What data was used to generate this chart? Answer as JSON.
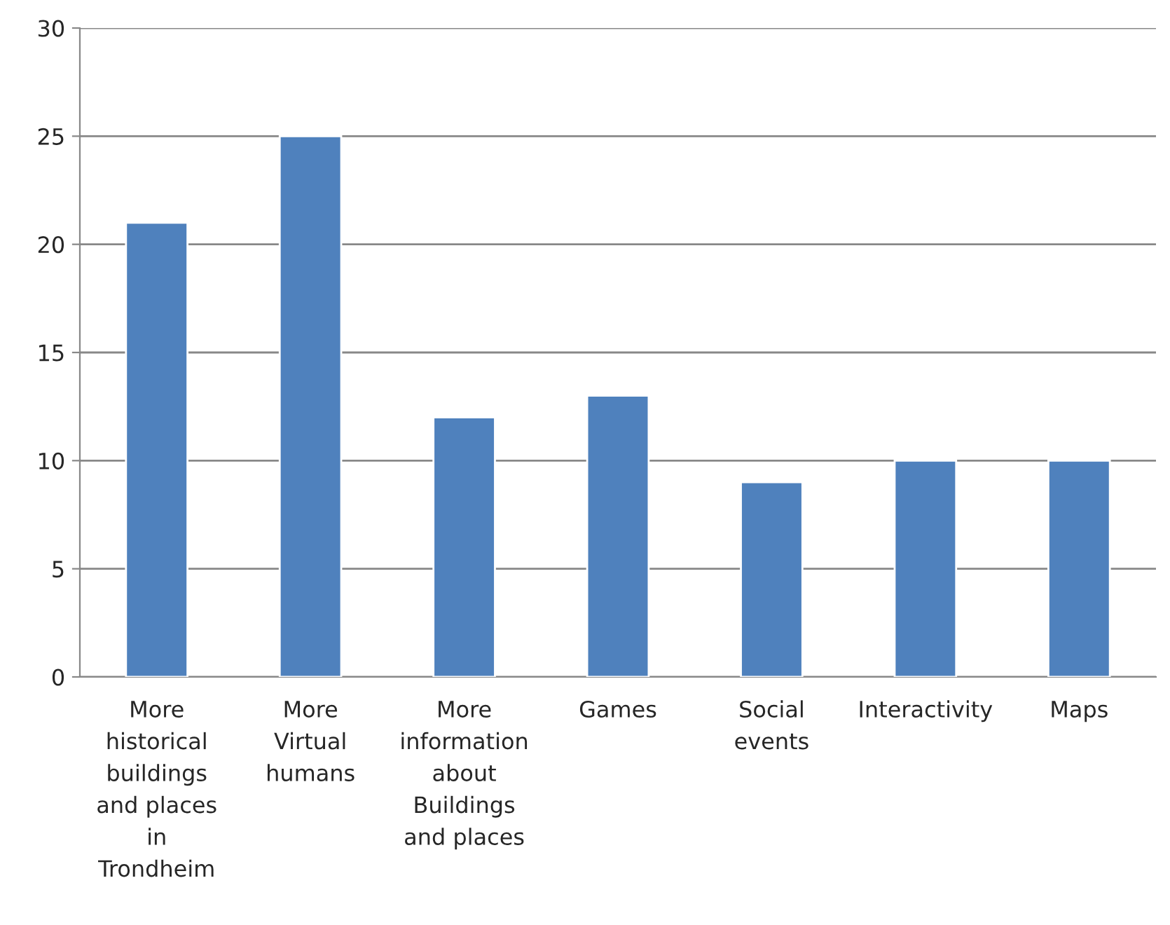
{
  "chart_data": {
    "type": "bar",
    "categories": [
      "More\nhistorical\nbuildings\nand places\nin\nTrondheim",
      "More\nVirtual\nhumans",
      "More\ninformation\nabout\nBuildings\nand places",
      "Games",
      "Social\nevents",
      "Interactivity",
      "Maps"
    ],
    "values": [
      21,
      25,
      12,
      13,
      9,
      10,
      10
    ],
    "color": "#4f81bd",
    "ylim": [
      0,
      30
    ],
    "yticks": [
      0,
      5,
      10,
      15,
      20,
      25,
      30
    ],
    "grid": "y",
    "legend": false
  }
}
